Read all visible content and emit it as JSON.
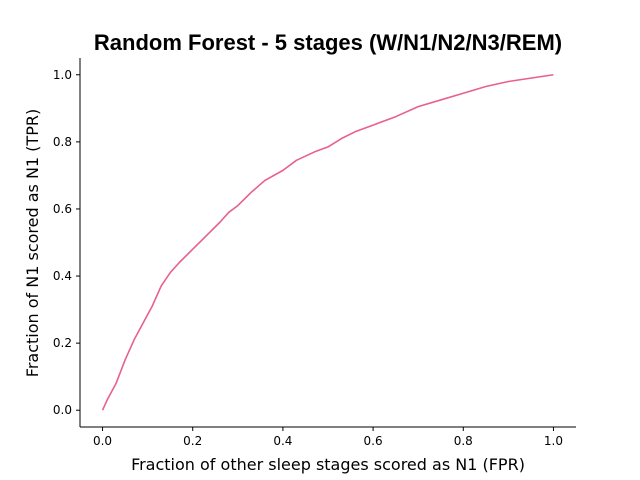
{
  "chart_data": {
    "type": "line",
    "title": "Random Forest - 5 stages (W/N1/N2/N3/REM)",
    "xlabel": "Fraction of other sleep stages scored as N1 (FPR)",
    "ylabel": "Fraction of N1 scored as N1 (TPR)",
    "xlim": [
      -0.05,
      1.05
    ],
    "ylim": [
      -0.05,
      1.05
    ],
    "xticks": [
      "0.0",
      "0.2",
      "0.4",
      "0.6",
      "0.8",
      "1.0"
    ],
    "yticks": [
      "0.0",
      "0.2",
      "0.4",
      "0.6",
      "0.8",
      "1.0"
    ],
    "grid": false,
    "legend": "none",
    "series": [
      {
        "color": "#e8608f",
        "x": [
          0.0,
          0.01,
          0.03,
          0.05,
          0.07,
          0.09,
          0.11,
          0.13,
          0.15,
          0.17,
          0.2,
          0.23,
          0.26,
          0.28,
          0.3,
          0.33,
          0.36,
          0.4,
          0.43,
          0.47,
          0.5,
          0.53,
          0.56,
          0.6,
          0.65,
          0.7,
          0.75,
          0.8,
          0.85,
          0.9,
          0.95,
          1.0
        ],
        "y": [
          0.0,
          0.03,
          0.08,
          0.15,
          0.21,
          0.26,
          0.31,
          0.37,
          0.41,
          0.44,
          0.48,
          0.52,
          0.56,
          0.59,
          0.61,
          0.65,
          0.685,
          0.715,
          0.745,
          0.77,
          0.785,
          0.81,
          0.83,
          0.85,
          0.875,
          0.905,
          0.925,
          0.945,
          0.965,
          0.98,
          0.99,
          1.0
        ]
      }
    ]
  }
}
